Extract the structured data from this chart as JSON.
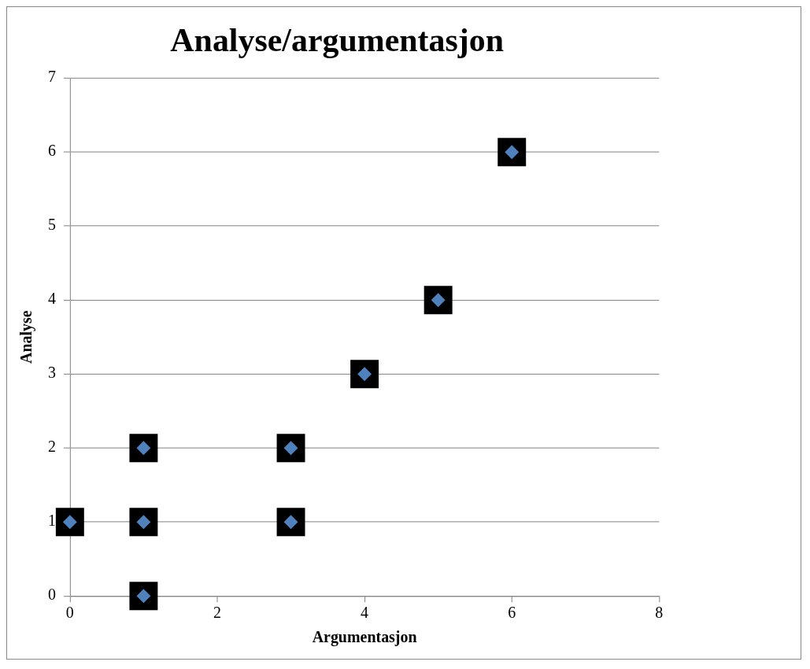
{
  "chart_data": {
    "type": "scatter",
    "title": "Analyse/argumentasjon",
    "xlabel": "Argumentasjon",
    "ylabel": "Analyse",
    "x": [
      0,
      1,
      1,
      1,
      3,
      3,
      4,
      5,
      6
    ],
    "series": [
      {
        "color": "#4f81bd",
        "values": [
          1,
          0,
          1,
          2,
          1,
          2,
          3,
          4,
          6
        ]
      }
    ],
    "xlim": [
      0,
      8
    ],
    "xticks": [
      0,
      2,
      4,
      6,
      8
    ],
    "ylim": [
      0,
      7
    ],
    "yticks": [
      0,
      1,
      2,
      3,
      4,
      5,
      6,
      7
    ],
    "grid": "y",
    "legend": false,
    "marker": "diamond"
  }
}
